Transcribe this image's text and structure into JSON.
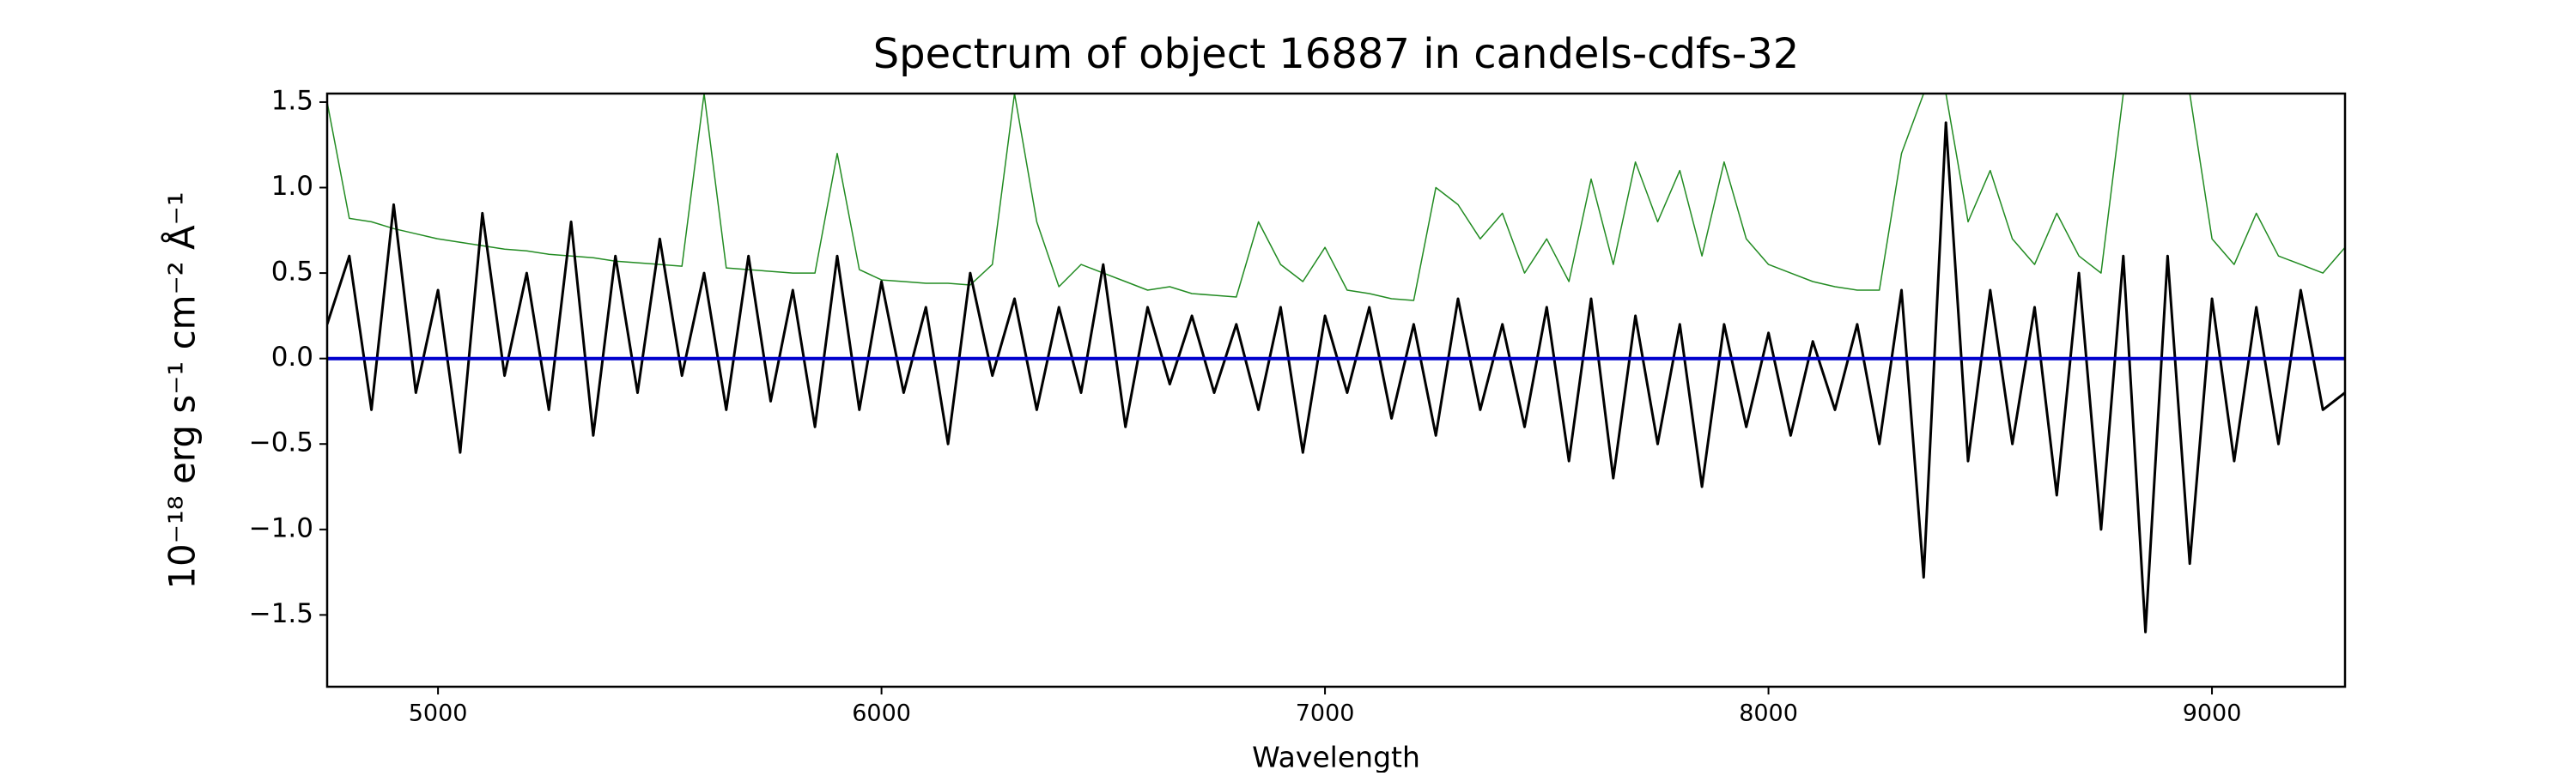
{
  "chart_data": {
    "type": "line",
    "title": "Spectrum of object 16887 in candels-cdfs-32",
    "xlabel": "Wavelength",
    "ylabel": "10⁻¹⁸ erg s⁻¹ cm⁻² Å⁻¹",
    "xlim": [
      4750,
      9300
    ],
    "ylim": [
      -1.92,
      1.55
    ],
    "xticks": [
      5000,
      6000,
      7000,
      8000,
      9000
    ],
    "yticks": [
      {
        "value": -1.5,
        "label": "−1.5"
      },
      {
        "value": -1,
        "label": "−1.0"
      },
      {
        "value": -0.5,
        "label": "−0.5"
      },
      {
        "value": 0,
        "label": "0.0"
      },
      {
        "value": 0.5,
        "label": "0.5"
      },
      {
        "value": 1,
        "label": "1.0"
      },
      {
        "value": 1.5,
        "label": "1.5"
      }
    ],
    "grid": false,
    "x": [
      4750,
      4800,
      4850,
      4900,
      4950,
      5000,
      5050,
      5100,
      5150,
      5200,
      5250,
      5300,
      5350,
      5400,
      5450,
      5500,
      5550,
      5600,
      5650,
      5700,
      5750,
      5800,
      5850,
      5900,
      5950,
      6000,
      6050,
      6100,
      6150,
      6200,
      6250,
      6300,
      6350,
      6400,
      6450,
      6500,
      6550,
      6600,
      6650,
      6700,
      6750,
      6800,
      6850,
      6900,
      6950,
      7000,
      7050,
      7100,
      7150,
      7200,
      7250,
      7300,
      7350,
      7400,
      7450,
      7500,
      7550,
      7600,
      7650,
      7700,
      7750,
      7800,
      7850,
      7900,
      7950,
      8000,
      8050,
      8100,
      8150,
      8200,
      8250,
      8300,
      8350,
      8400,
      8450,
      8500,
      8550,
      8600,
      8650,
      8700,
      8750,
      8800,
      8850,
      8900,
      8950,
      9000,
      9050,
      9100,
      9150,
      9200,
      9250,
      9300
    ],
    "series": [
      {
        "color": "#228b22",
        "width": 1.5,
        "values": [
          1.5,
          0.82,
          0.8,
          0.76,
          0.73,
          0.7,
          0.68,
          0.66,
          0.64,
          0.63,
          0.61,
          0.6,
          0.59,
          0.57,
          0.56,
          0.55,
          0.54,
          1.55,
          0.53,
          0.52,
          0.51,
          0.5,
          0.5,
          1.2,
          0.52,
          0.46,
          0.45,
          0.44,
          0.44,
          0.43,
          0.55,
          1.55,
          0.8,
          0.42,
          0.55,
          0.5,
          0.45,
          0.4,
          0.42,
          0.38,
          0.37,
          0.36,
          0.8,
          0.55,
          0.45,
          0.65,
          0.4,
          0.38,
          0.35,
          0.34,
          1.0,
          0.9,
          0.7,
          0.85,
          0.5,
          0.7,
          0.45,
          1.05,
          0.55,
          1.15,
          0.8,
          1.1,
          0.6,
          1.15,
          0.7,
          0.55,
          0.5,
          0.45,
          0.42,
          0.4,
          0.4,
          1.2,
          1.55,
          1.55,
          0.8,
          1.1,
          0.7,
          0.55,
          0.85,
          0.6,
          0.5,
          1.55,
          1.55,
          1.55,
          1.55,
          0.7,
          0.55,
          0.85,
          0.6,
          0.55,
          0.5,
          0.65
        ]
      },
      {
        "color": "#000000",
        "width": 3,
        "values": [
          0.2,
          0.6,
          -0.3,
          0.9,
          -0.2,
          0.4,
          -0.55,
          0.85,
          -0.1,
          0.5,
          -0.3,
          0.8,
          -0.45,
          0.6,
          -0.2,
          0.7,
          -0.1,
          0.5,
          -0.3,
          0.6,
          -0.25,
          0.4,
          -0.4,
          0.6,
          -0.3,
          0.45,
          -0.2,
          0.3,
          -0.5,
          0.5,
          -0.1,
          0.35,
          -0.3,
          0.3,
          -0.2,
          0.55,
          -0.4,
          0.3,
          -0.15,
          0.25,
          -0.2,
          0.2,
          -0.3,
          0.3,
          -0.55,
          0.25,
          -0.2,
          0.3,
          -0.35,
          0.2,
          -0.45,
          0.35,
          -0.3,
          0.2,
          -0.4,
          0.3,
          -0.6,
          0.35,
          -0.7,
          0.25,
          -0.5,
          0.2,
          -0.75,
          0.2,
          -0.4,
          0.15,
          -0.45,
          0.1,
          -0.3,
          0.2,
          -0.5,
          0.4,
          -1.28,
          1.38,
          -0.6,
          0.4,
          -0.5,
          0.3,
          -0.8,
          0.5,
          -1.0,
          0.6,
          -1.6,
          0.6,
          -1.2,
          0.35,
          -0.6,
          0.3,
          -0.5,
          0.4,
          -0.3,
          -0.2
        ]
      },
      {
        "color": "#0000cd",
        "width": 4,
        "x": [
          4750,
          9300
        ],
        "values": [
          0,
          0
        ]
      }
    ]
  }
}
